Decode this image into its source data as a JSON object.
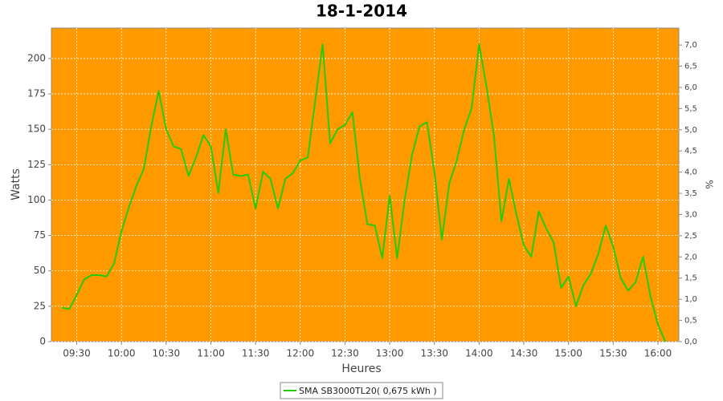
{
  "chart_data": {
    "type": "line",
    "title": "18-1-2014",
    "x_label": "Heures",
    "y_label": "Watts",
    "y2_label": "%",
    "plot_background": "#ff9900",
    "grid": true,
    "legend": "bottom",
    "x": [
      "09:20",
      "09:25",
      "09:30",
      "09:35",
      "09:40",
      "09:45",
      "09:50",
      "09:55",
      "10:00",
      "10:05",
      "10:10",
      "10:15",
      "10:20",
      "10:25",
      "10:30",
      "10:35",
      "10:40",
      "10:45",
      "10:50",
      "10:55",
      "11:00",
      "11:05",
      "11:10",
      "11:15",
      "11:20",
      "11:25",
      "11:30",
      "11:35",
      "11:40",
      "11:45",
      "11:50",
      "11:55",
      "12:00",
      "12:05",
      "12:10",
      "12:15",
      "12:20",
      "12:25",
      "12:30",
      "12:35",
      "12:40",
      "12:45",
      "12:50",
      "12:55",
      "13:00",
      "13:05",
      "13:10",
      "13:15",
      "13:20",
      "13:25",
      "13:30",
      "13:35",
      "13:40",
      "13:45",
      "13:50",
      "13:55",
      "14:00",
      "14:05",
      "14:10",
      "14:15",
      "14:20",
      "14:25",
      "14:30",
      "14:35",
      "14:40",
      "14:45",
      "14:50",
      "14:55",
      "15:00",
      "15:05",
      "15:10",
      "15:15",
      "15:20",
      "15:25",
      "15:30",
      "15:35",
      "15:40",
      "15:45",
      "15:50",
      "15:55",
      "16:00",
      "16:05"
    ],
    "series": [
      {
        "name": "SMA SB3000TL20( 0,675 kWh )",
        "color": "#22cc00",
        "values": [
          24,
          23,
          33,
          44,
          47,
          47,
          46,
          55,
          78,
          95,
          110,
          122,
          152,
          177,
          150,
          138,
          136,
          117,
          130,
          146,
          138,
          105,
          150,
          118,
          117,
          118,
          94,
          120,
          115,
          94,
          115,
          119,
          128,
          130,
          170,
          210,
          140,
          150,
          153,
          162,
          115,
          83,
          82,
          59,
          103,
          59,
          100,
          132,
          152,
          155,
          120,
          72,
          112,
          128,
          150,
          165,
          210,
          180,
          145,
          85,
          115,
          90,
          68,
          60,
          92,
          80,
          70,
          38,
          46,
          25,
          40,
          48,
          62,
          82,
          67,
          45,
          36,
          42,
          60,
          32,
          12,
          0
        ]
      }
    ],
    "xlim": [
      "09:13",
      "16:14"
    ],
    "xticks": [
      "09:30",
      "10:00",
      "10:30",
      "11:00",
      "11:30",
      "12:00",
      "12:30",
      "13:00",
      "13:30",
      "14:00",
      "14:30",
      "15:00",
      "15:30",
      "16:00"
    ],
    "ylim": [
      0,
      221.5
    ],
    "yticks": [
      0,
      25,
      50,
      75,
      100,
      125,
      150,
      175,
      200
    ],
    "y2lim": [
      0,
      7.4
    ],
    "y2ticks": [
      {
        "value": 0,
        "label": "0,0"
      },
      {
        "value": 0.5,
        "label": "0,5"
      },
      {
        "value": 1,
        "label": "1,0"
      },
      {
        "value": 1.5,
        "label": "1,5"
      },
      {
        "value": 2,
        "label": "2,0"
      },
      {
        "value": 2.5,
        "label": "2,5"
      },
      {
        "value": 3,
        "label": "3,0"
      },
      {
        "value": 3.5,
        "label": "3,5"
      },
      {
        "value": 4,
        "label": "4,0"
      },
      {
        "value": 4.5,
        "label": "4,5"
      },
      {
        "value": 5,
        "label": "5,0"
      },
      {
        "value": 5.5,
        "label": "5,5"
      },
      {
        "value": 6,
        "label": "6,0"
      },
      {
        "value": 6.5,
        "label": "6,5"
      },
      {
        "value": 7,
        "label": "7,0"
      }
    ]
  }
}
